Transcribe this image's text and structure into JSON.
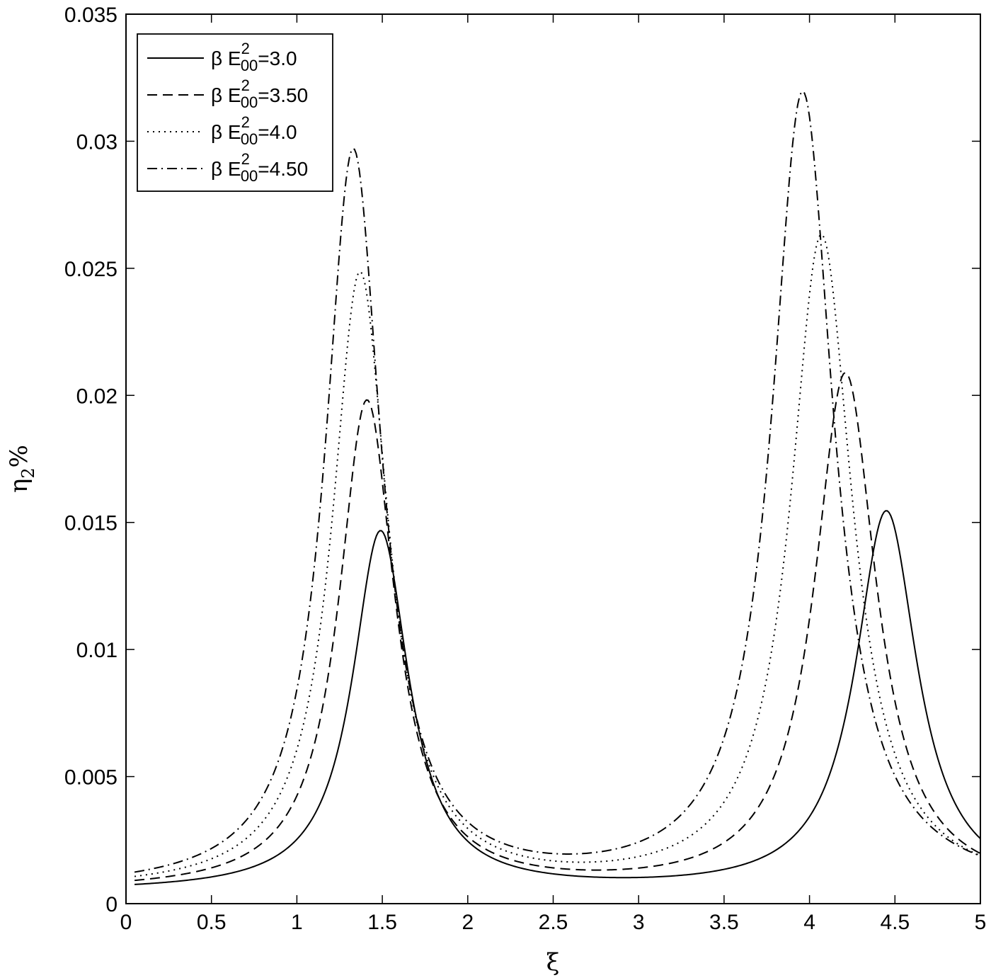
{
  "chart_data": {
    "type": "line",
    "xlabel": "ξ",
    "ylabel_main": "η",
    "ylabel_sub": "2",
    "ylabel_suffix": "%",
    "xlim": [
      0,
      5
    ],
    "ylim": [
      0,
      0.035
    ],
    "xticks": [
      0,
      0.5,
      1,
      1.5,
      2,
      2.5,
      3,
      3.5,
      4,
      4.5,
      5
    ],
    "xtick_labels": [
      "0",
      "0.5",
      "1",
      "1.5",
      "2",
      "2.5",
      "3",
      "3.5",
      "4",
      "4.5",
      "5"
    ],
    "yticks": [
      0,
      0.005,
      0.01,
      0.015,
      0.02,
      0.025,
      0.03,
      0.035
    ],
    "ytick_labels": [
      "0",
      "0.005",
      "0.01",
      "0.015",
      "0.02",
      "0.025",
      "0.03",
      "0.035"
    ],
    "grid": false,
    "legend_position": "top-left",
    "series": [
      {
        "name": "β E=3.0",
        "legend_prefix": "β E",
        "legend_sup": "2",
        "legend_sub": "00",
        "legend_suffix": "=3.0",
        "line_style": "solid",
        "peak1": {
          "x": 1.49,
          "y": 0.0146,
          "w": 0.2
        },
        "peak2": {
          "x": 4.45,
          "y": 0.0154,
          "w": 0.22
        },
        "baseline": 0.00045,
        "end_value": 0.0028
      },
      {
        "name": "β E=3.50",
        "legend_prefix": "β E",
        "legend_sup": "2",
        "legend_sub": "00",
        "legend_suffix": "=3.50",
        "line_style": "dashed",
        "peak1": {
          "x": 1.41,
          "y": 0.0197,
          "w": 0.2
        },
        "peak2": {
          "x": 4.21,
          "y": 0.0208,
          "w": 0.22
        },
        "baseline": 0.00045,
        "end_value": 0.0018
      },
      {
        "name": "β E=4.0",
        "legend_prefix": "β E",
        "legend_sup": "2",
        "legend_sub": "00",
        "legend_suffix": "=4.0",
        "line_style": "dotted",
        "peak1": {
          "x": 1.37,
          "y": 0.0247,
          "w": 0.2
        },
        "peak2": {
          "x": 4.07,
          "y": 0.0262,
          "w": 0.22
        },
        "baseline": 0.00045,
        "end_value": 0.0016
      },
      {
        "name": "β E=4.50",
        "legend_prefix": "β E",
        "legend_sup": "2",
        "legend_sub": "00",
        "legend_suffix": "=4.50",
        "line_style": "dashdot",
        "peak1": {
          "x": 1.33,
          "y": 0.0295,
          "w": 0.2
        },
        "peak2": {
          "x": 3.96,
          "y": 0.0318,
          "w": 0.22
        },
        "baseline": 0.00045,
        "end_value": 0.0015
      }
    ]
  }
}
